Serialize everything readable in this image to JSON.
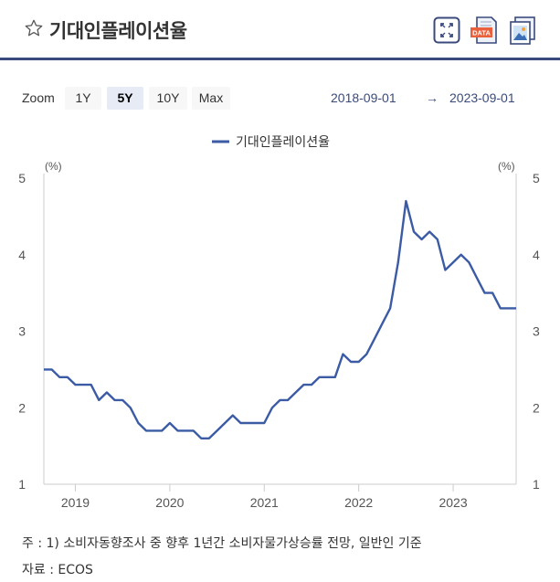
{
  "header": {
    "title": "기대인플레이션율",
    "icons": [
      "star-icon",
      "fullscreen-icon",
      "data-download-icon",
      "image-download-icon"
    ],
    "data_icon_label": "DATA"
  },
  "zoom": {
    "label": "Zoom",
    "buttons": [
      "1Y",
      "5Y",
      "10Y",
      "Max"
    ],
    "active": "5Y",
    "from": "2018-09-01",
    "arrow": "→",
    "to": "2023-09-01"
  },
  "colors": {
    "line": "#3b5ba5",
    "accent": "#3a4a7c"
  },
  "chart_data": {
    "type": "line",
    "title": "",
    "xlabel": "",
    "ylabel": "(%)",
    "ylabel_right": "(%)",
    "ylim": [
      1,
      5
    ],
    "yticks": [
      "1",
      "2",
      "3",
      "4",
      "5"
    ],
    "xticks": [
      "2019",
      "2020",
      "2021",
      "2022",
      "2023"
    ],
    "legend_position": "top-center",
    "grid": false,
    "series": [
      {
        "name": "기대인플레이션율",
        "x": [
          "2018-09",
          "2018-10",
          "2018-11",
          "2018-12",
          "2019-01",
          "2019-02",
          "2019-03",
          "2019-04",
          "2019-05",
          "2019-06",
          "2019-07",
          "2019-08",
          "2019-09",
          "2019-10",
          "2019-11",
          "2019-12",
          "2020-01",
          "2020-02",
          "2020-03",
          "2020-04",
          "2020-05",
          "2020-06",
          "2020-07",
          "2020-08",
          "2020-09",
          "2020-10",
          "2020-11",
          "2020-12",
          "2021-01",
          "2021-02",
          "2021-03",
          "2021-04",
          "2021-05",
          "2021-06",
          "2021-07",
          "2021-08",
          "2021-09",
          "2021-10",
          "2021-11",
          "2021-12",
          "2022-01",
          "2022-02",
          "2022-03",
          "2022-04",
          "2022-05",
          "2022-06",
          "2022-07",
          "2022-08",
          "2022-09",
          "2022-10",
          "2022-11",
          "2022-12",
          "2023-01",
          "2023-02",
          "2023-03",
          "2023-04",
          "2023-05",
          "2023-06",
          "2023-07",
          "2023-08",
          "2023-09"
        ],
        "values": [
          2.5,
          2.5,
          2.4,
          2.4,
          2.3,
          2.3,
          2.3,
          2.1,
          2.2,
          2.1,
          2.1,
          2.0,
          1.8,
          1.7,
          1.7,
          1.7,
          1.8,
          1.7,
          1.7,
          1.7,
          1.6,
          1.6,
          1.7,
          1.8,
          1.9,
          1.8,
          1.8,
          1.8,
          1.8,
          2.0,
          2.1,
          2.1,
          2.2,
          2.3,
          2.3,
          2.4,
          2.4,
          2.4,
          2.7,
          2.6,
          2.6,
          2.7,
          2.9,
          3.1,
          3.3,
          3.9,
          4.7,
          4.3,
          4.2,
          4.3,
          4.2,
          3.8,
          3.9,
          4.0,
          3.9,
          3.7,
          3.5,
          3.5,
          3.3,
          3.3,
          3.3
        ]
      }
    ]
  },
  "footnotes": {
    "note": "주 : 1)  소비자동향조사 중 향후 1년간 소비자물가상승률 전망, 일반인 기준",
    "source": "자료 :  ECOS"
  }
}
